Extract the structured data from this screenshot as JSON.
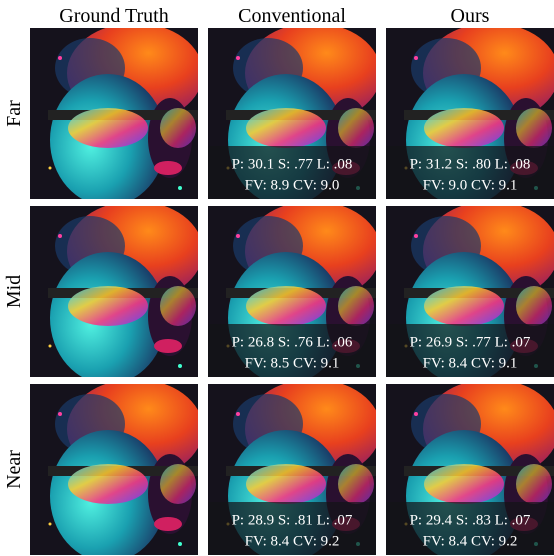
{
  "columns": [
    "Ground Truth",
    "Conventional",
    "Ours"
  ],
  "rows": [
    {
      "label": "Far",
      "conventional": [
        "P: 30.1 S: .77 L: .08",
        "FV: 8.9 CV: 9.0"
      ],
      "ours": [
        "P: 31.2 S: .80 L: .08",
        "FV: 9.0 CV: 9.1"
      ]
    },
    {
      "label": "Mid",
      "conventional": [
        "P: 26.8 S: .76 L: .06",
        "FV: 8.5 CV: 9.1"
      ],
      "ours": [
        "P: 26.9 S: .77 L: .07",
        "FV: 8.4 CV: 9.1"
      ]
    },
    {
      "label": "Near",
      "conventional": [
        "P: 28.9 S: .81 L: .07",
        "FV: 8.4 CV: 9.2"
      ],
      "ours": [
        "P: 29.4 S: .83 L: .07",
        "FV: 8.4 CV: 9.2"
      ]
    }
  ]
}
